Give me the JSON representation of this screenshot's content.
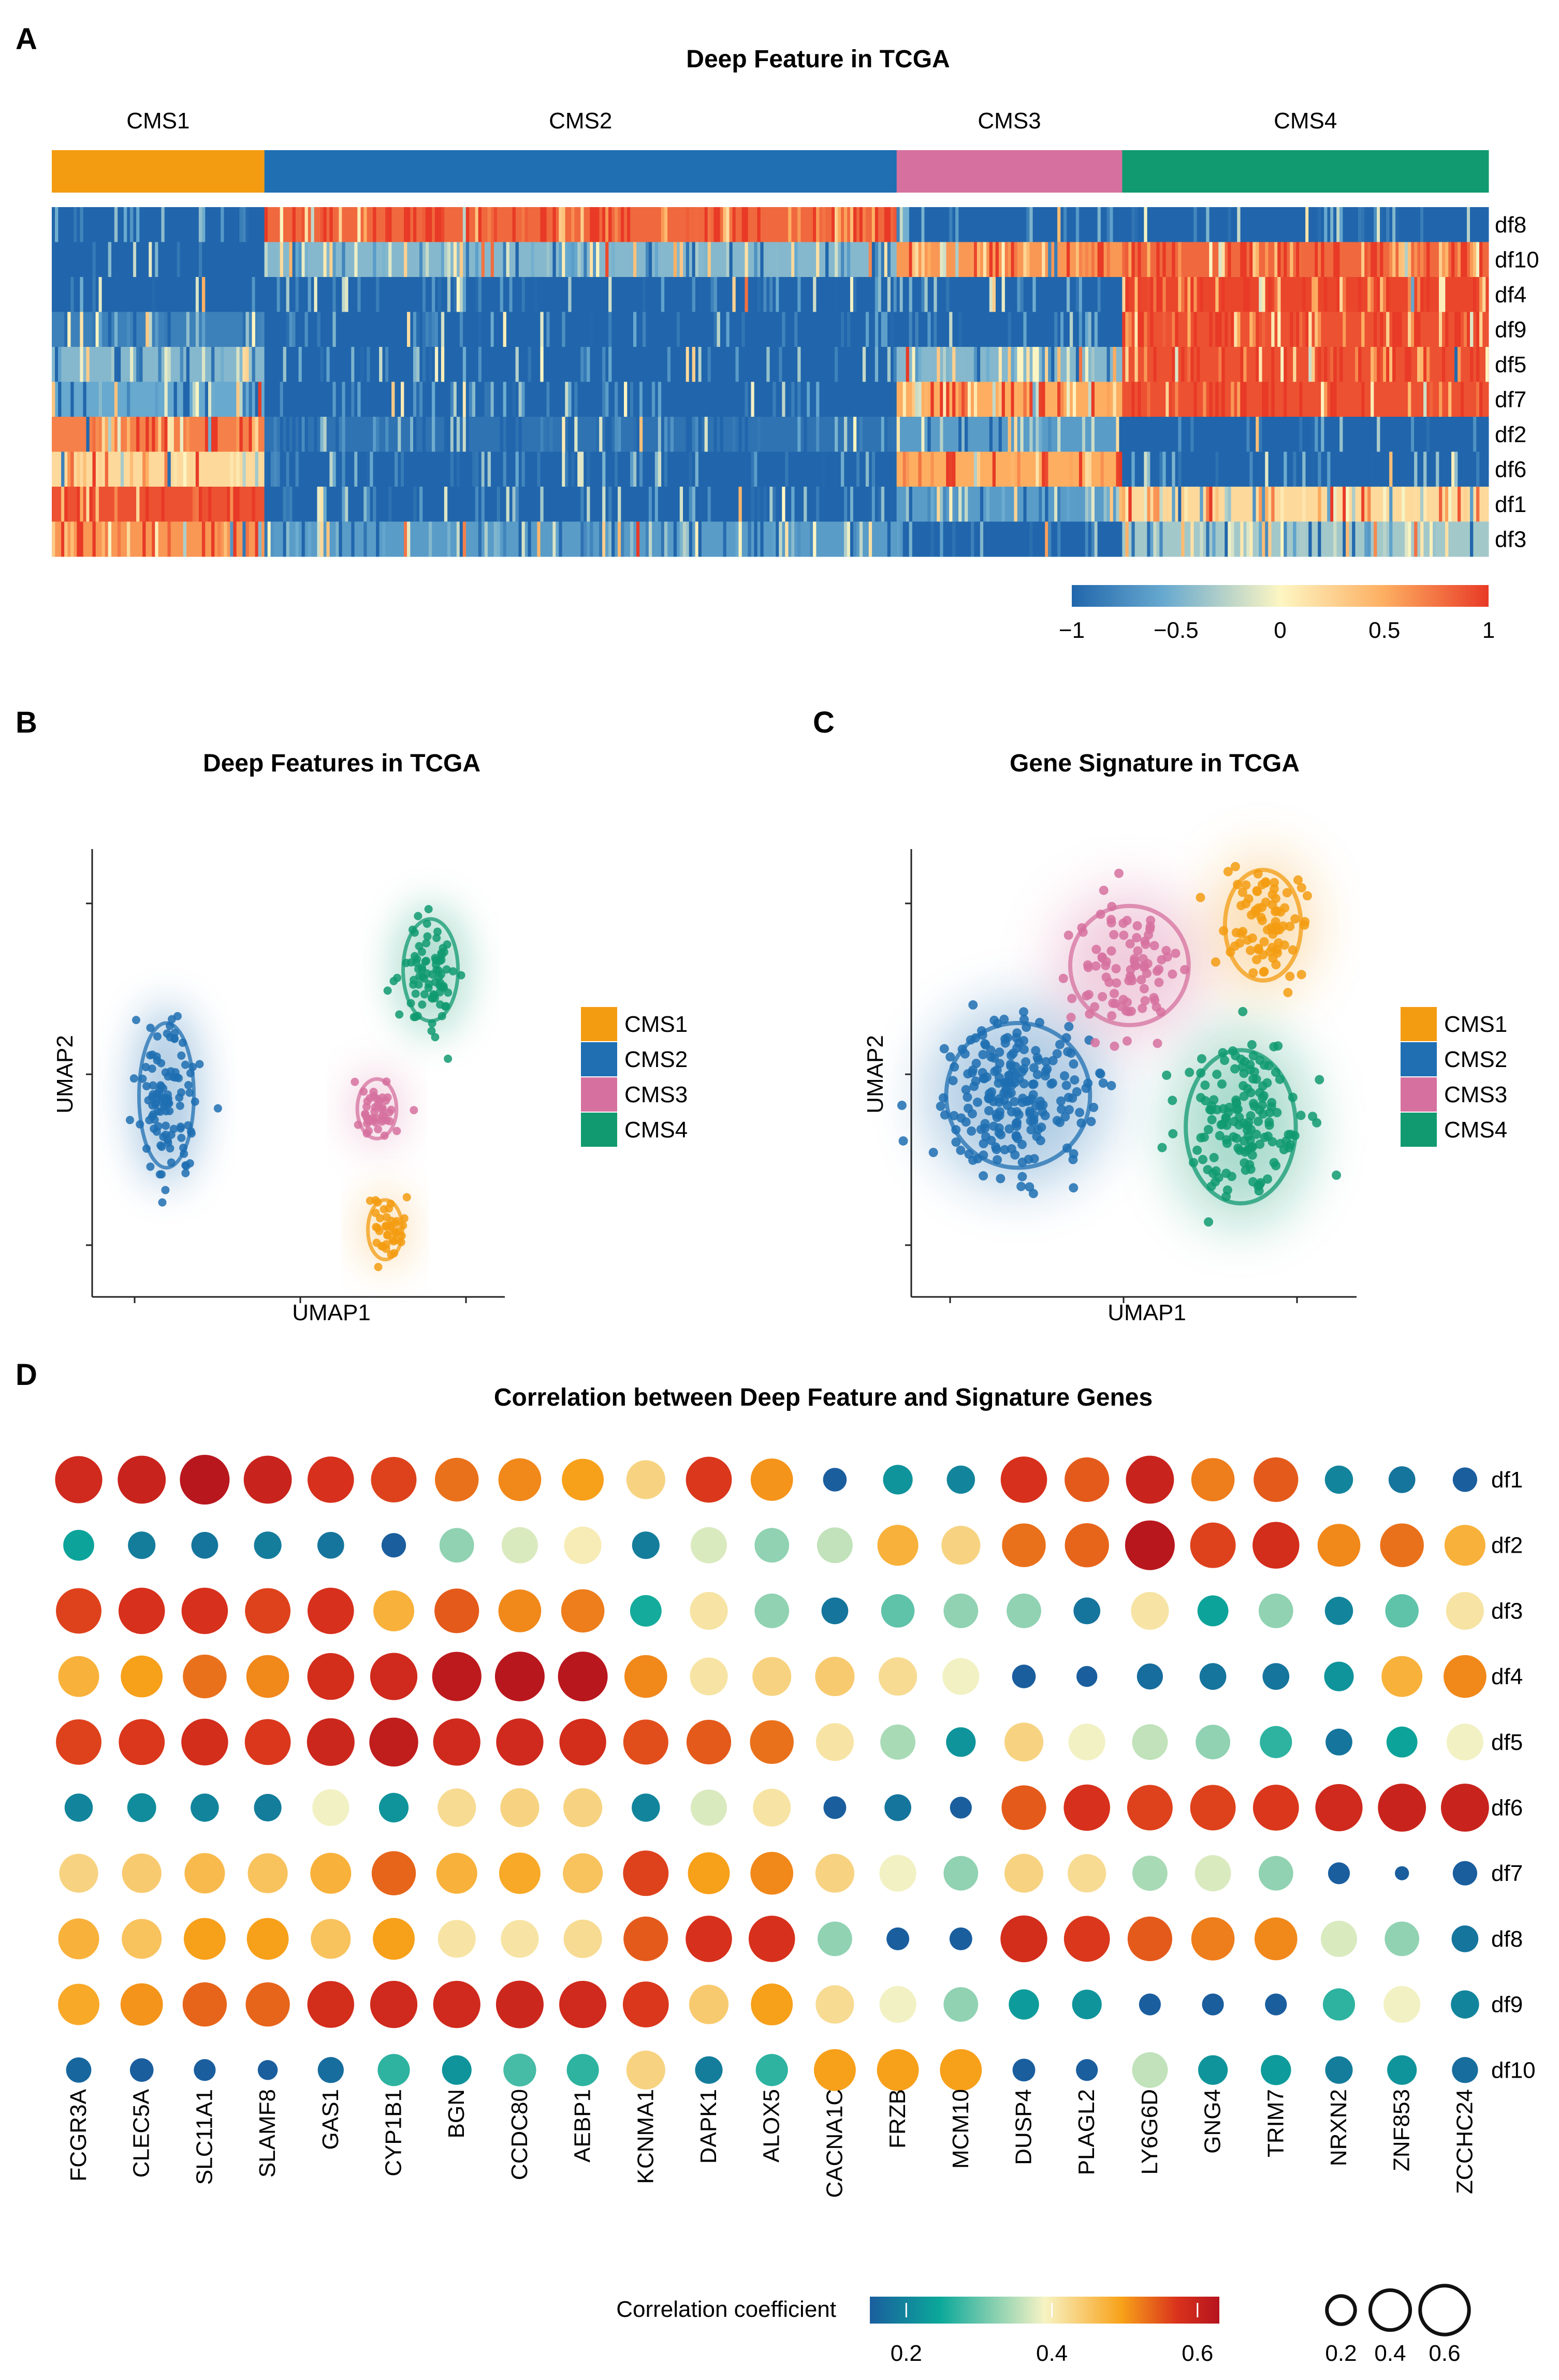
{
  "panels": [
    "A",
    "B",
    "C",
    "D"
  ],
  "colors": {
    "CMS1": "#f39c12",
    "CMS2": "#1f6fb2",
    "CMS3": "#d6719f",
    "CMS4": "#119a70"
  },
  "chart_data": [
    {
      "type": "heatmap",
      "title": "Deep Feature in TCGA",
      "groups": [
        "CMS1",
        "CMS2",
        "CMS3",
        "CMS4"
      ],
      "group_fraction": [
        0.148,
        0.44,
        0.157,
        0.255
      ],
      "rows": [
        "df8",
        "df10",
        "df4",
        "df9",
        "df5",
        "df7",
        "df2",
        "df6",
        "df1",
        "df3"
      ],
      "group_levels": [
        [
          -1.0,
          -1.0,
          -1.0,
          -0.8,
          -0.4,
          -0.5,
          0.7,
          0.2,
          0.9,
          0.6
        ],
        [
          0.8,
          -0.4,
          -1.0,
          -1.0,
          -1.0,
          -1.0,
          -0.9,
          -1.0,
          -1.0,
          -0.6
        ],
        [
          -1.0,
          0.6,
          -1.0,
          -1.0,
          -0.4,
          0.5,
          -0.6,
          0.5,
          -0.6,
          -1.0
        ],
        [
          -1.0,
          0.8,
          0.95,
          0.9,
          0.9,
          0.9,
          -1.0,
          -1.0,
          0.2,
          -0.3
        ]
      ],
      "colorbar": {
        "ticks": [
          -1,
          -0.5,
          0,
          0.5,
          1
        ],
        "tick_labels": [
          "−1",
          "−0.5",
          "0",
          "0.5",
          "1"
        ],
        "colors": [
          "#2166ac",
          "#67a9cf",
          "#fdf6c3",
          "#fdae61",
          "#e83a26"
        ]
      }
    },
    {
      "type": "scatter",
      "title": "Deep Features in TCGA",
      "xlabel": "UMAP1",
      "ylabel": "UMAP2",
      "legend": [
        "CMS1",
        "CMS2",
        "CMS3",
        "CMS4"
      ],
      "clusters": [
        {
          "name": "CMS2",
          "cx": 0.18,
          "cy": 0.55,
          "sx": 0.035,
          "sy": 0.085,
          "n": 110
        },
        {
          "name": "CMS4",
          "cx": 0.82,
          "cy": 0.27,
          "sx": 0.035,
          "sy": 0.06,
          "n": 80
        },
        {
          "name": "CMS3",
          "cx": 0.69,
          "cy": 0.58,
          "sx": 0.025,
          "sy": 0.035,
          "n": 45
        },
        {
          "name": "CMS1",
          "cx": 0.71,
          "cy": 0.85,
          "sx": 0.022,
          "sy": 0.035,
          "n": 40
        }
      ]
    },
    {
      "type": "scatter",
      "title": "Gene Signature in TCGA",
      "xlabel": "UMAP1",
      "ylabel": "UMAP2",
      "legend": [
        "CMS1",
        "CMS2",
        "CMS3",
        "CMS4"
      ],
      "clusters": [
        {
          "name": "CMS2",
          "cx": 0.24,
          "cy": 0.55,
          "sx": 0.085,
          "sy": 0.085,
          "n": 220
        },
        {
          "name": "CMS3",
          "cx": 0.49,
          "cy": 0.26,
          "sx": 0.07,
          "sy": 0.07,
          "n": 90
        },
        {
          "name": "CMS1",
          "cx": 0.79,
          "cy": 0.17,
          "sx": 0.045,
          "sy": 0.065,
          "n": 80
        },
        {
          "name": "CMS4",
          "cx": 0.74,
          "cy": 0.62,
          "sx": 0.065,
          "sy": 0.09,
          "n": 150
        }
      ]
    },
    {
      "type": "bubble",
      "title": "Correlation between Deep Feature and Signature Genes",
      "genes": [
        "FCGR3A",
        "CLEC5A",
        "SLC11A1",
        "SLAMF8",
        "GAS1",
        "CYP1B1",
        "BGN",
        "CCDC80",
        "AEBP1",
        "KCNMA1",
        "DAPK1",
        "ALOX5",
        "CACNA1C",
        "FRZB",
        "MCM10",
        "DUSP4",
        "PLAGL2",
        "LY6G6D",
        "GNG4",
        "TRIM7",
        "NRXN2",
        "ZNF853",
        "ZCCHC24"
      ],
      "features": [
        "df1",
        "df2",
        "df3",
        "df4",
        "df5",
        "df6",
        "df7",
        "df8",
        "df9",
        "df10"
      ],
      "values": [
        [
          0.56,
          0.58,
          0.62,
          0.58,
          0.54,
          0.52,
          0.48,
          0.46,
          0.44,
          0.38,
          0.53,
          0.45,
          0.14,
          0.22,
          0.2,
          0.54,
          0.5,
          0.58,
          0.47,
          0.5,
          0.2,
          0.18,
          0.15
        ],
        [
          0.24,
          0.19,
          0.18,
          0.19,
          0.18,
          0.15,
          0.3,
          0.33,
          0.35,
          0.19,
          0.33,
          0.3,
          0.32,
          0.42,
          0.38,
          0.48,
          0.49,
          0.62,
          0.52,
          0.55,
          0.46,
          0.48,
          0.42
        ],
        [
          0.52,
          0.54,
          0.54,
          0.52,
          0.54,
          0.42,
          0.5,
          0.46,
          0.47,
          0.25,
          0.36,
          0.3,
          0.18,
          0.28,
          0.3,
          0.3,
          0.18,
          0.36,
          0.24,
          0.3,
          0.2,
          0.28,
          0.36
        ],
        [
          0.42,
          0.44,
          0.48,
          0.46,
          0.55,
          0.56,
          0.61,
          0.62,
          0.62,
          0.46,
          0.36,
          0.38,
          0.39,
          0.37,
          0.34,
          0.14,
          0.11,
          0.17,
          0.18,
          0.18,
          0.22,
          0.42,
          0.46
        ],
        [
          0.52,
          0.53,
          0.55,
          0.53,
          0.57,
          0.6,
          0.56,
          0.56,
          0.55,
          0.51,
          0.5,
          0.48,
          0.36,
          0.31,
          0.22,
          0.38,
          0.34,
          0.32,
          0.3,
          0.26,
          0.18,
          0.24,
          0.34
        ],
        [
          0.2,
          0.21,
          0.2,
          0.19,
          0.34,
          0.22,
          0.37,
          0.38,
          0.38,
          0.2,
          0.33,
          0.36,
          0.13,
          0.18,
          0.12,
          0.5,
          0.54,
          0.52,
          0.52,
          0.53,
          0.56,
          0.58,
          0.58
        ],
        [
          0.38,
          0.39,
          0.41,
          0.4,
          0.42,
          0.49,
          0.42,
          0.43,
          0.4,
          0.52,
          0.44,
          0.46,
          0.38,
          0.34,
          0.3,
          0.38,
          0.37,
          0.31,
          0.33,
          0.3,
          0.12,
          0.05,
          0.15
        ],
        [
          0.42,
          0.4,
          0.44,
          0.44,
          0.4,
          0.44,
          0.36,
          0.36,
          0.37,
          0.5,
          0.54,
          0.54,
          0.3,
          0.13,
          0.13,
          0.55,
          0.53,
          0.5,
          0.47,
          0.46,
          0.33,
          0.3,
          0.18
        ],
        [
          0.43,
          0.45,
          0.49,
          0.49,
          0.55,
          0.56,
          0.56,
          0.57,
          0.56,
          0.53,
          0.39,
          0.44,
          0.37,
          0.34,
          0.3,
          0.23,
          0.22,
          0.12,
          0.12,
          0.12,
          0.26,
          0.34,
          0.2
        ],
        [
          0.16,
          0.14,
          0.12,
          0.1,
          0.17,
          0.26,
          0.22,
          0.27,
          0.26,
          0.38,
          0.19,
          0.26,
          0.44,
          0.44,
          0.44,
          0.13,
          0.12,
          0.32,
          0.22,
          0.23,
          0.19,
          0.22,
          0.17
        ]
      ],
      "colorbar": {
        "label": "Correlation coefficient",
        "ticks": [
          0.2,
          0.4,
          0.6
        ],
        "tick_labels": [
          "0.2",
          "0.4",
          "0.6"
        ],
        "range": [
          0.15,
          0.63
        ],
        "colors": [
          "#1a5e9e",
          "#0ba89a",
          "#f7f3c4",
          "#f8a21a",
          "#d9321c",
          "#b5141e"
        ]
      },
      "size_legend": [
        "0.2",
        "0.4",
        "0.6"
      ]
    }
  ]
}
